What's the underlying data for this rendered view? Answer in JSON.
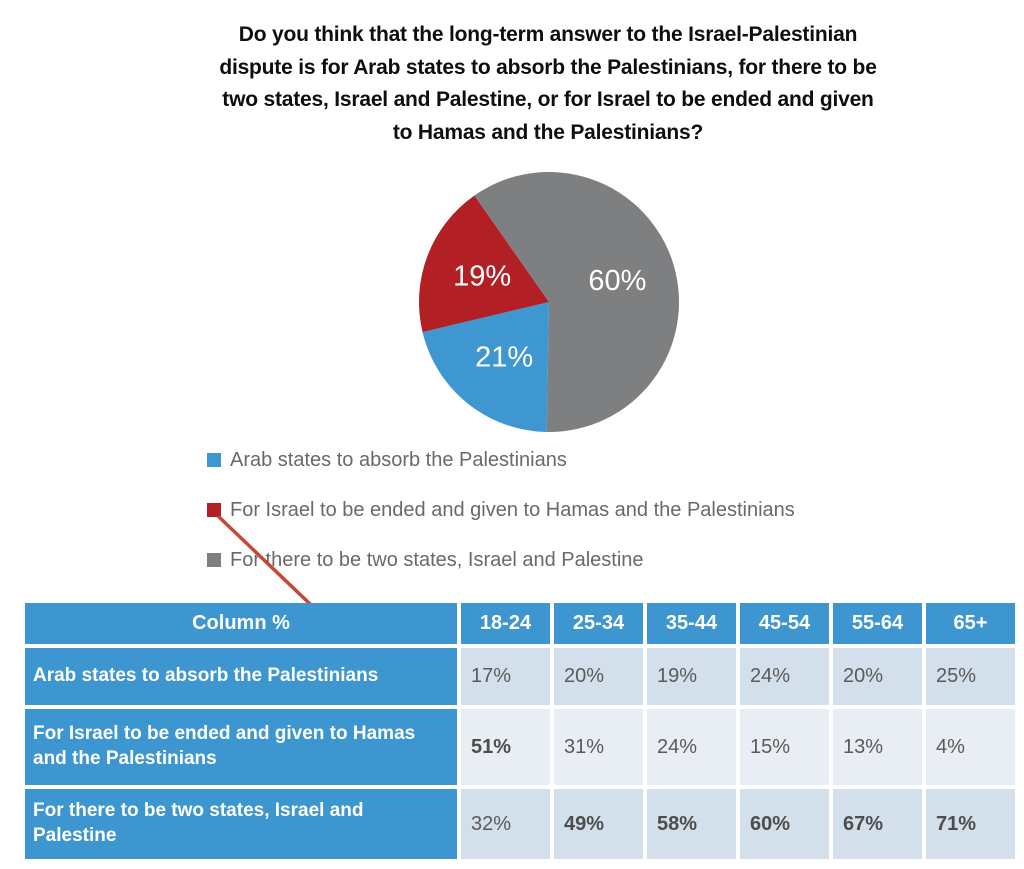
{
  "title": {
    "lines": [
      "Do you think that the long-term answer to the Israel-Palestinian",
      "dispute is for Arab states to absorb the Palestinians, for there to be",
      "two states, Israel and Palestine, or for Israel to be ended and given",
      "to Hamas and the Palestinians?"
    ]
  },
  "chart_data": {
    "type": "pie",
    "start_angle_deg": 181,
    "slices": [
      {
        "label": "Arab states to absorb the Palestinians",
        "value": 21,
        "display": "21%",
        "color": "#3E97D1"
      },
      {
        "label": "For Israel to be ended and given to Hamas and the Palestinians",
        "value": 19,
        "display": "19%",
        "color": "#B22025"
      },
      {
        "label": "For there to be two states, Israel and Palestine",
        "value": 60,
        "display": "60%",
        "color": "#7E7F81"
      }
    ],
    "legend_position": "below-chart-left",
    "data_label_color": "#FFFFFF"
  },
  "table": {
    "header": [
      "Column %",
      "18-24",
      "25-34",
      "35-44",
      "45-54",
      "55-64",
      "65+"
    ],
    "rows": [
      {
        "label": "Arab states to absorb the Palestinians",
        "values": [
          "17%",
          "20%",
          "19%",
          "24%",
          "20%",
          "25%"
        ],
        "bold": [
          false,
          false,
          false,
          false,
          false,
          false
        ]
      },
      {
        "label": "For Israel to be ended and given to Hamas and the Palestinians",
        "values": [
          "51%",
          "31%",
          "24%",
          "15%",
          "13%",
          "4%"
        ],
        "bold": [
          true,
          false,
          false,
          false,
          false,
          false
        ]
      },
      {
        "label": "For there to be two states, Israel and Palestine",
        "values": [
          "32%",
          "49%",
          "58%",
          "60%",
          "67%",
          "71%"
        ],
        "bold": [
          false,
          true,
          true,
          true,
          true,
          true
        ]
      }
    ],
    "header_bg": "#3D96CF",
    "row_shades": [
      "#D3DFEA",
      "#E9EEF4",
      "#D3DFEA"
    ],
    "value_text_color": "#5A5A5A"
  },
  "annotation": {
    "type": "arrow",
    "color": "#C94536",
    "from": "red legend marker",
    "to": "51% cell (For Israel to be ended and given to Hamas and the Palestinians, 18-24)"
  }
}
